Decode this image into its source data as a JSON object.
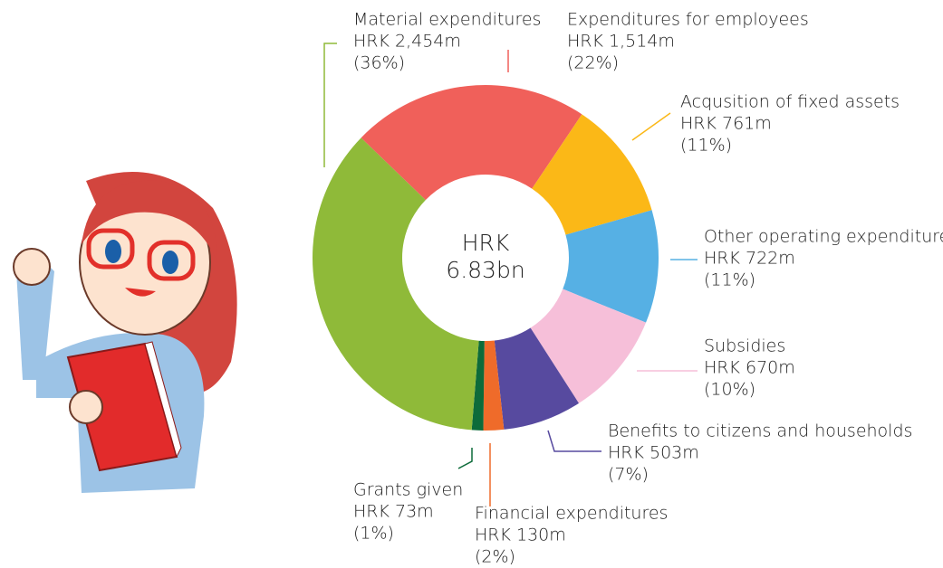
{
  "chart_data": {
    "type": "donut",
    "center_text": [
      "HRK",
      "6.83bn"
    ],
    "categories": [
      "Expenditures for employees",
      "Acqusition of fixed assets",
      "Other operating expenditures",
      "Subsidies",
      "Benefits to citizens and households",
      "Financial expenditures",
      "Grants given",
      "Material expenditures"
    ],
    "values": [
      1514,
      761,
      722,
      670,
      503,
      130,
      73,
      2454
    ],
    "value_labels": [
      "HRK 1,514m",
      "HRK 761m",
      "HRK 722m",
      "HRK 670m",
      "HRK 503m",
      "HRK 130m",
      "HRK 73m",
      "HRK 2,454m"
    ],
    "percents": [
      22,
      11,
      11,
      10,
      7,
      2,
      1,
      36
    ],
    "percent_labels": [
      "(22%)",
      "(11%)",
      "(11%)",
      "(10%)",
      "(7%)",
      "(2%)",
      "(1%)",
      "(36%)"
    ],
    "colors": [
      "#f0605a",
      "#fbb817",
      "#56b0e4",
      "#f6bfd9",
      "#574a9f",
      "#ef6b2a",
      "#0d6b3a",
      "#8fba39"
    ]
  }
}
